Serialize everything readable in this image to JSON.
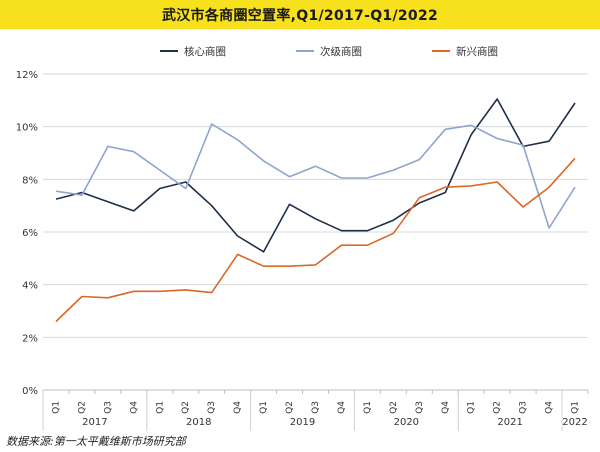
{
  "title": "武汉市各商圈空置率,Q1/2017-Q1/2022",
  "source": "数据来源:第一太平戴维斯市场研究部",
  "chart_data": {
    "type": "line",
    "title": "武汉市各商圈空置率,Q1/2017-Q1/2022",
    "xlabel": "",
    "ylabel": "",
    "ylim": [
      0,
      12
    ],
    "yticks": [
      "0%",
      "2%",
      "4%",
      "6%",
      "8%",
      "10%",
      "12%"
    ],
    "grid": "horizontal",
    "legend": "top-center",
    "categories": [
      "Q1",
      "Q2",
      "Q3",
      "Q4",
      "Q1",
      "Q2",
      "Q3",
      "Q4",
      "Q1",
      "Q2",
      "Q3",
      "Q4",
      "Q1",
      "Q2",
      "Q3",
      "Q4",
      "Q1",
      "Q2",
      "Q3",
      "Q4",
      "Q1"
    ],
    "years": [
      {
        "label": "2017",
        "start": 0,
        "end": 3
      },
      {
        "label": "2018",
        "start": 4,
        "end": 7
      },
      {
        "label": "2019",
        "start": 8,
        "end": 11
      },
      {
        "label": "2020",
        "start": 12,
        "end": 15
      },
      {
        "label": "2021",
        "start": 16,
        "end": 19
      },
      {
        "label": "2022",
        "start": 20,
        "end": 20
      }
    ],
    "series": [
      {
        "name": "核心商圈",
        "color": "#1f2f4a",
        "values": [
          7.25,
          7.5,
          7.15,
          6.8,
          7.65,
          7.9,
          7.0,
          5.85,
          5.25,
          7.05,
          6.5,
          6.05,
          6.05,
          6.45,
          7.1,
          7.5,
          9.7,
          11.05,
          9.25,
          9.45,
          10.9
        ]
      },
      {
        "name": "次级商圈",
        "color": "#8ea5cc",
        "values": [
          7.55,
          7.4,
          9.25,
          9.05,
          8.35,
          7.65,
          10.1,
          9.5,
          8.7,
          8.1,
          8.5,
          8.05,
          8.05,
          8.35,
          8.75,
          9.9,
          10.05,
          9.55,
          9.3,
          6.15,
          7.7
        ]
      },
      {
        "name": "新兴商圈",
        "color": "#d9682a",
        "values": [
          2.6,
          3.55,
          3.5,
          3.75,
          3.75,
          3.8,
          3.7,
          5.15,
          4.7,
          4.7,
          4.75,
          5.5,
          5.5,
          5.95,
          7.3,
          7.7,
          7.75,
          7.9,
          6.95,
          7.7,
          8.8
        ]
      }
    ]
  }
}
